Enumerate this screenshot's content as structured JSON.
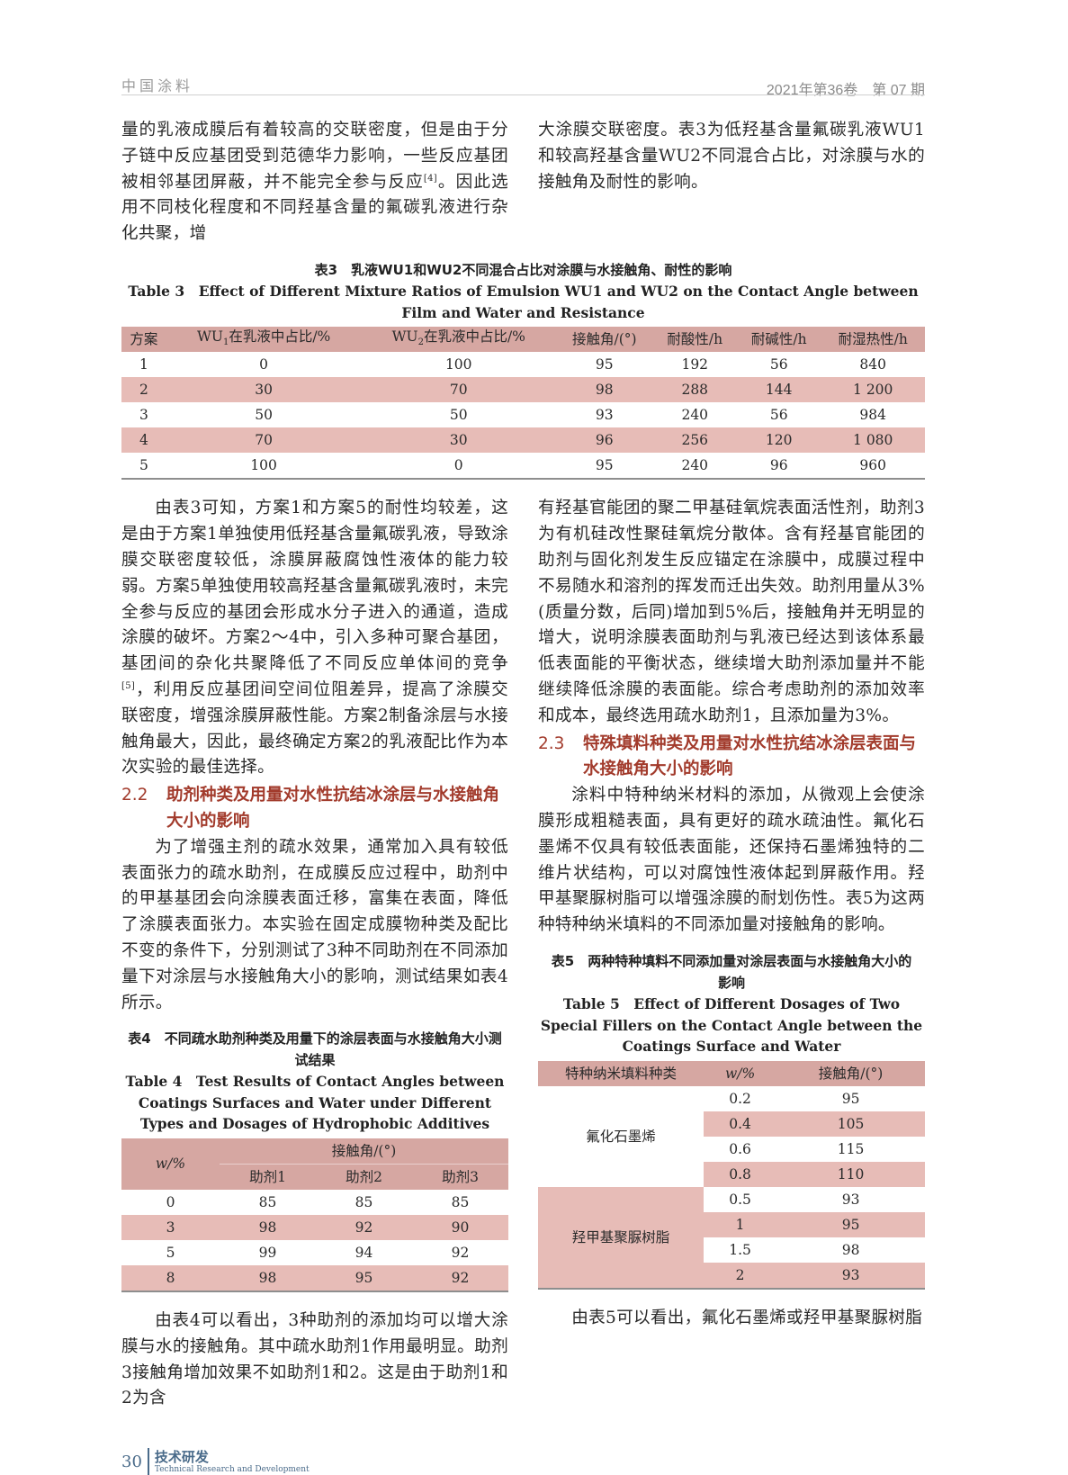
{
  "header": {
    "journal": "中国涂料",
    "issue": "2021年第36卷　第 07 期"
  },
  "p1_left": {
    "before": "量的乳液成膜后有着较高的交联密度，但是由于分子链中反应基团受到范德华力影响，一些反应基团被相邻基团屏蔽，并不能完全参与反应",
    "ref": "[4]",
    "after": "。因此选用不同枝化程度和不同羟基含量的氟碳乳液进行杂化共聚，增"
  },
  "p1_right": "大涂膜交联密度。表3为低羟基含量氟碳乳液WU1和较高羟基含量WU2不同混合占比，对涂膜与水的接触角及耐性的影响。",
  "table3": {
    "caption_cn": "表3　乳液WU1和WU2不同混合占比对涂膜与水接触角、耐性的影响",
    "caption_en": "Table 3　Effect of Different Mixture Ratios of Emulsion WU1 and WU2 on the Contact Angle between Film and Water and Resistance",
    "headers": [
      {
        "text": "方案"
      },
      {
        "pre": "WU",
        "sub": "1",
        "post": "在乳液中占比/%"
      },
      {
        "pre": "WU",
        "sub": "2",
        "post": "在乳液中占比/%"
      },
      {
        "text": "接触角/(°)"
      },
      {
        "text": "耐酸性/h"
      },
      {
        "text": "耐碱性/h"
      },
      {
        "text": "耐湿热性/h"
      }
    ],
    "rows": [
      [
        "1",
        "0",
        "100",
        "95",
        "192",
        "56",
        "840"
      ],
      [
        "2",
        "30",
        "70",
        "98",
        "288",
        "144",
        "1 200"
      ],
      [
        "3",
        "50",
        "50",
        "93",
        "240",
        "56",
        "984"
      ],
      [
        "4",
        "70",
        "30",
        "96",
        "256",
        "120",
        "1 080"
      ],
      [
        "5",
        "100",
        "0",
        "95",
        "240",
        "96",
        "960"
      ]
    ]
  },
  "p2_left": {
    "before": "由表3可知，方案1和方案5的耐性均较差，这是由于方案1单独使用低羟基含量氟碳乳液，导致涂膜交联密度较低，涂膜屏蔽腐蚀性液体的能力较弱。方案5单独使用较高羟基含量氟碳乳液时，未完全参与反应的基团会形成水分子进入的通道，造成涂膜的破坏。方案2～4中，引入多种可聚合基团，基团间的杂化共聚降低了不同反应单体间的竞争",
    "ref": "[5]",
    "after": "，利用反应基团间空间位阻差异，提高了涂膜交联密度，增强涂膜屏蔽性能。方案2制备涂层与水接触角最大，因此，最终确定方案2的乳液配比作为本次实验的最佳选择。"
  },
  "section22": {
    "num": "2.2",
    "title": "助剂种类及用量对水性抗结冰涂层与水接触角大小的影响"
  },
  "p3_left": "为了增强主剂的疏水效果，通常加入具有较低表面张力的疏水助剂，在成膜反应过程中，助剂中的甲基基团会向涂膜表面迁移，富集在表面，降低了涂膜表面张力。本实验在固定成膜物种类及配比不变的条件下，分别测试了3种不同助剂在不同添加量下对涂层与水接触角大小的影响，测试结果如表4所示。",
  "table4": {
    "caption_cn": "表4　不同疏水助剂种类及用量下的涂层表面与水接触角大小测试结果",
    "caption_en": "Table 4　Test Results of Contact Angles between Coatings Surfaces and Water under Different Types and Dosages of Hydrophobic Additives",
    "header_w": "w/%",
    "header_angle": "接触角/(°)",
    "sub_headers": [
      "助剂1",
      "助剂2",
      "助剂3"
    ],
    "rows": [
      [
        "0",
        "85",
        "85",
        "85"
      ],
      [
        "3",
        "98",
        "92",
        "90"
      ],
      [
        "5",
        "99",
        "94",
        "92"
      ],
      [
        "8",
        "98",
        "95",
        "92"
      ]
    ]
  },
  "p4_left": "由表4可以看出，3种助剂的添加均可以增大涂膜与水的接触角。其中疏水助剂1作用最明显。助剂3接触角增加效果不如助剂1和2。这是由于助剂1和2为含",
  "p2_right": "有羟基官能团的聚二甲基硅氧烷表面活性剂，助剂3为有机硅改性聚硅氧烷分散体。含有羟基官能团的助剂与固化剂发生反应锚定在涂膜中，成膜过程中不易随水和溶剂的挥发而迁出失效。助剂用量从3%(质量分数，后同)增加到5%后，接触角并无明显的增大，说明涂膜表面助剂与乳液已经达到该体系最低表面能的平衡状态，继续增大助剂添加量并不能继续降低涂膜的表面能。综合考虑助剂的添加效率和成本，最终选用疏水助剂1，且添加量为3%。",
  "section23": {
    "num": "2.3",
    "title": "特殊填料种类及用量对水性抗结冰涂层表面与水接触角大小的影响"
  },
  "p3_right": "涂料中特种纳米材料的添加，从微观上会使涂膜形成粗糙表面，具有更好的疏水疏油性。氟化石墨烯不仅具有较低表面能，还保持石墨烯独特的二维片状结构，可以对腐蚀性液体起到屏蔽作用。羟甲基聚脲树脂可以增强涂膜的耐划伤性。表5为这两种特种纳米填料的不同添加量对接触角的影响。",
  "table5": {
    "caption_cn": "表5　两种特种填料不同添加量对涂层表面与水接触角大小的影响",
    "caption_en": "Table 5　Effect of Different Dosages of Two Special Fillers on the Contact Angle between the Coatings Surface and Water",
    "headers": [
      "特种纳米填料种类",
      "w/%",
      "接触角/(°)"
    ],
    "groups": [
      {
        "name": "氟化石墨烯",
        "rows": [
          [
            "0.2",
            "95"
          ],
          [
            "0.4",
            "105"
          ],
          [
            "0.6",
            "115"
          ],
          [
            "0.8",
            "110"
          ]
        ]
      },
      {
        "name": "羟甲基聚脲树脂",
        "rows": [
          [
            "0.5",
            "93"
          ],
          [
            "1",
            "95"
          ],
          [
            "1.5",
            "98"
          ],
          [
            "2",
            "93"
          ]
        ]
      }
    ]
  },
  "p4_right": "由表5可以看出，氟化石墨烯或羟甲基聚脲树脂",
  "footer": {
    "page": "30",
    "section_cn": "技术研发",
    "section_en": "Technical Research and Development"
  },
  "colors": {
    "heading": "#a23b2c",
    "table_header": "#d6a7a2",
    "table_stripe": "#e7bcb7",
    "footer": "#4a6b8a"
  }
}
